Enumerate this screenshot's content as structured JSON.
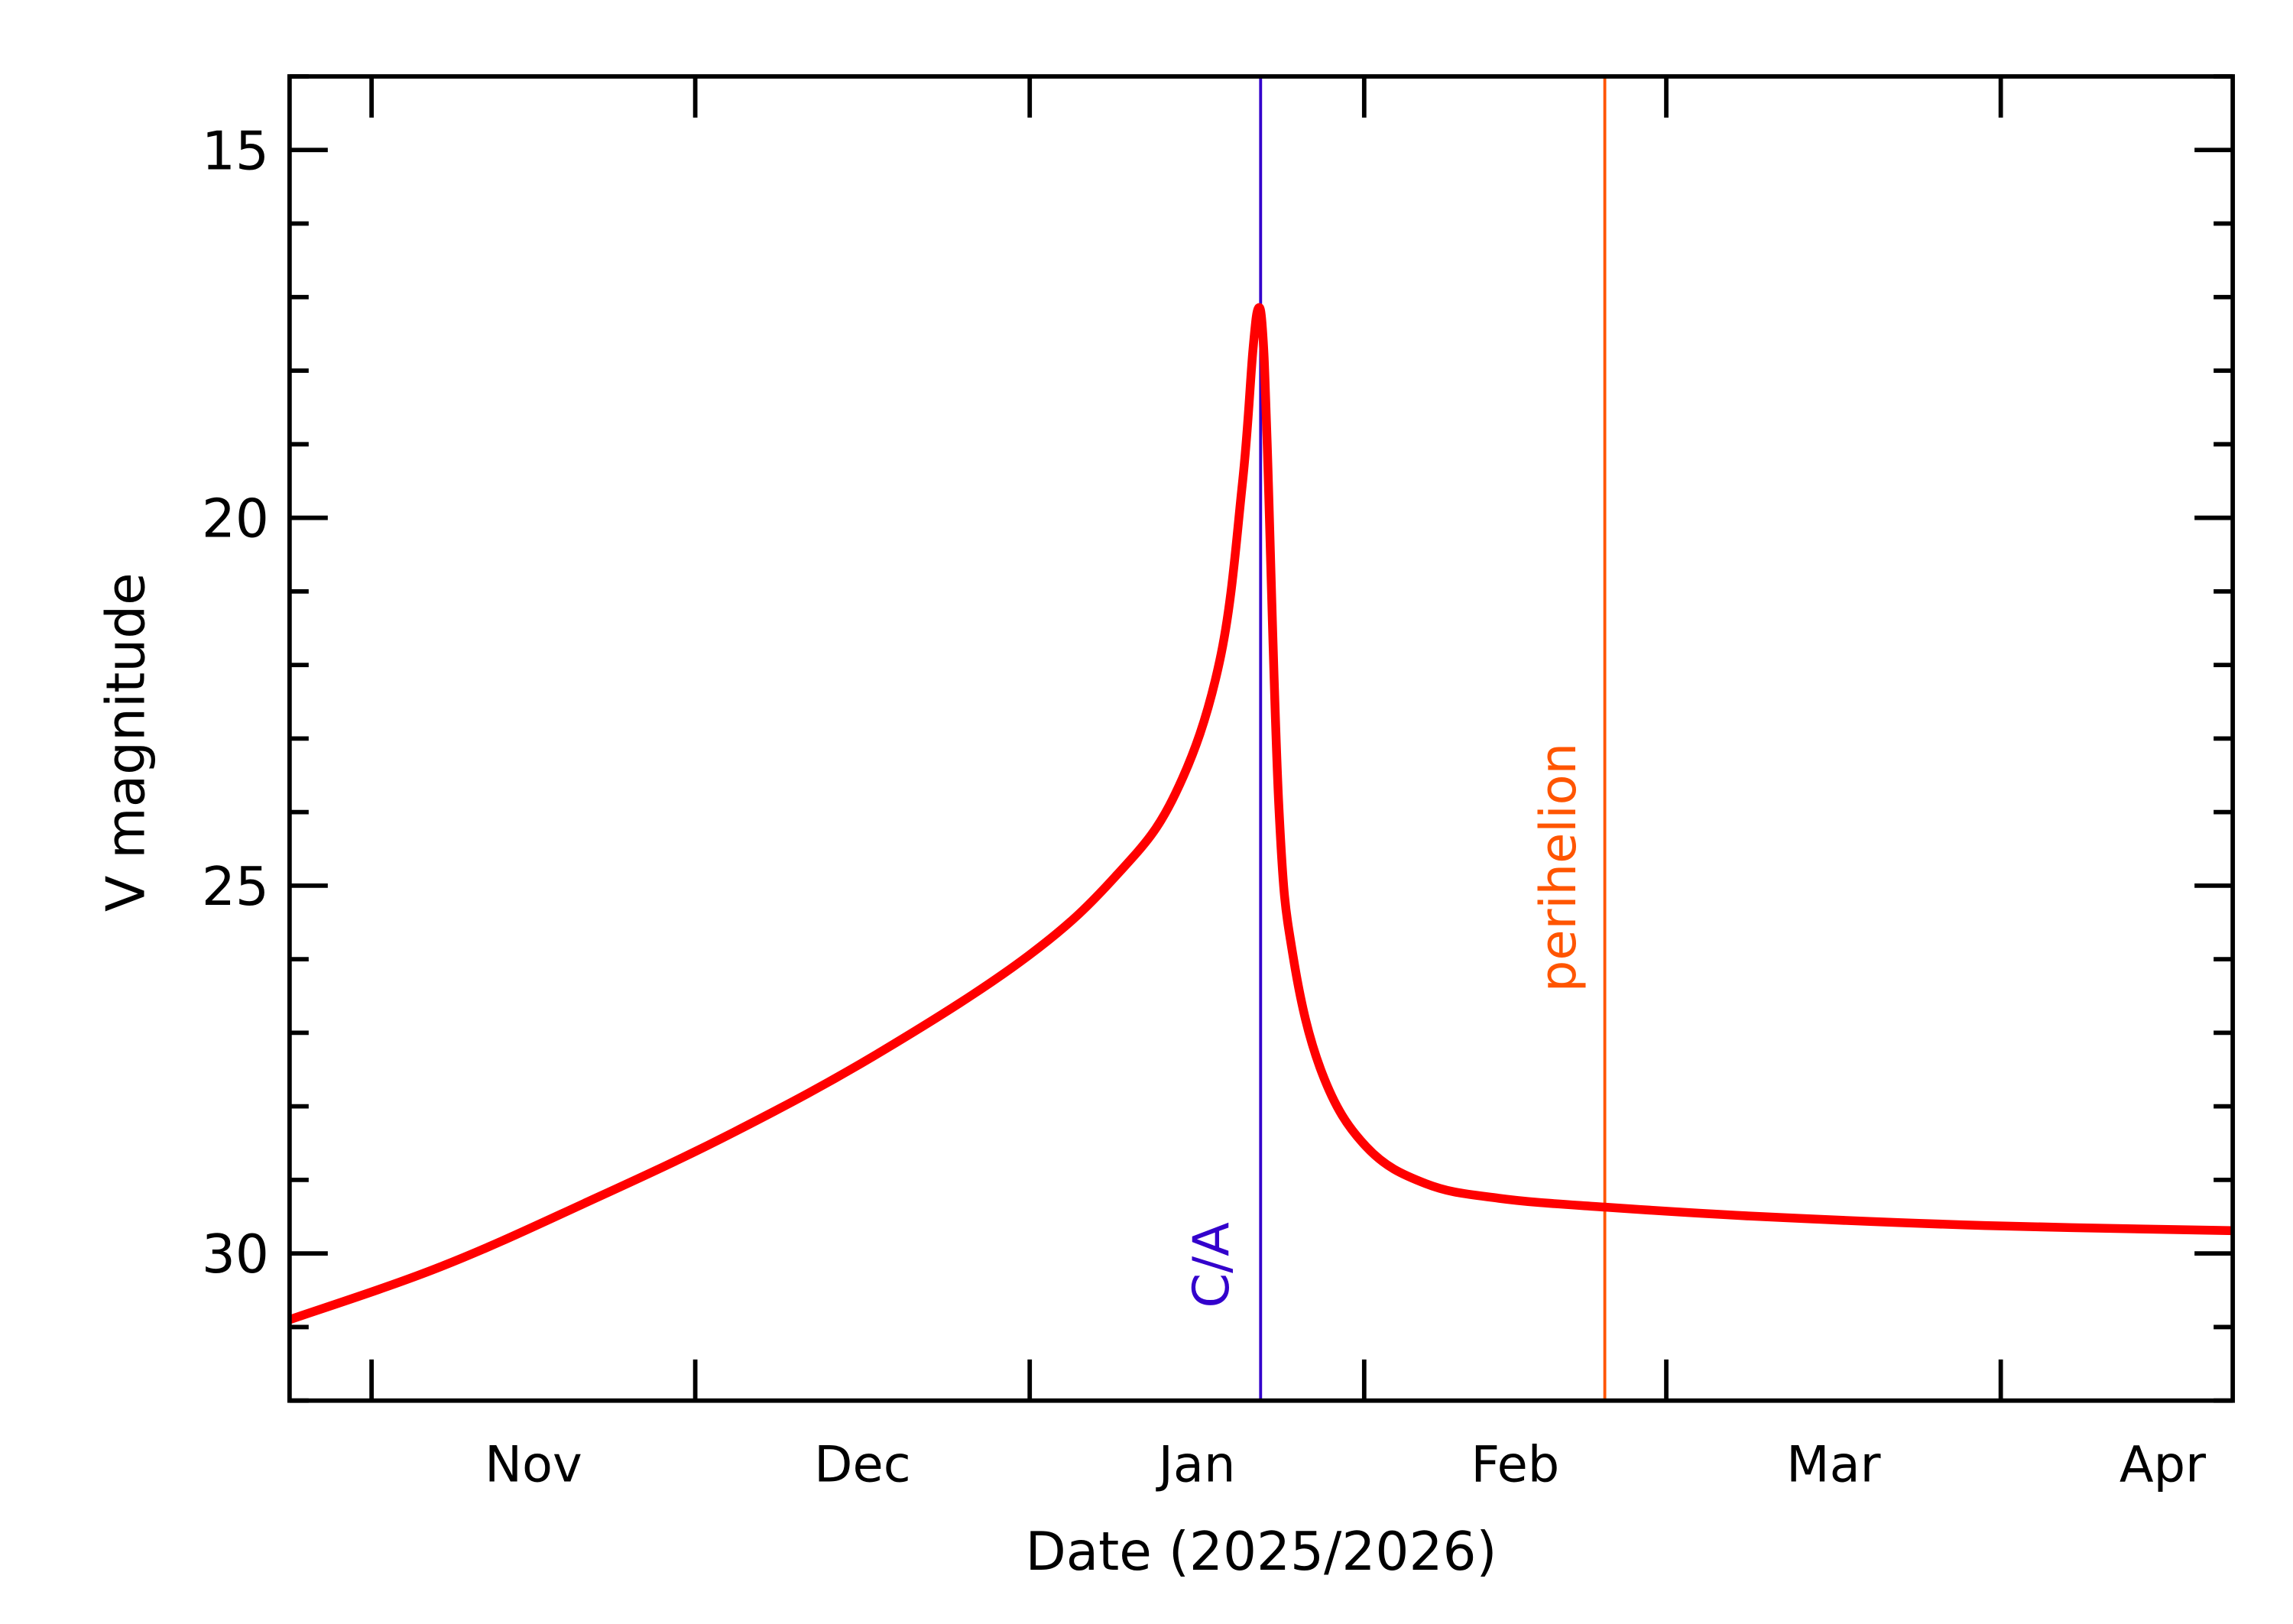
{
  "chart_data": {
    "type": "line",
    "xlabel": "Date (2025/2026)",
    "ylabel": "V magnitude",
    "x_units": "days since 2025-11-01",
    "xlim": [
      -7.6,
      172.5
    ],
    "ylim": [
      32,
      14
    ],
    "y_inverted": true,
    "yticks": [
      15,
      20,
      25,
      30
    ],
    "yticks_labels": [
      "15",
      "20",
      "25",
      "30"
    ],
    "y_minor_step": 1,
    "month_ticks": [
      0,
      30,
      61,
      92,
      120,
      151
    ],
    "month_labels": [
      {
        "label": "Nov",
        "x": 15
      },
      {
        "label": "Dec",
        "x": 45.5
      },
      {
        "label": "Jan",
        "x": 76.5
      },
      {
        "label": "Feb",
        "x": 106
      },
      {
        "label": "Mar",
        "x": 135.5
      },
      {
        "label": "Apr",
        "x": 166
      }
    ],
    "grid": false,
    "series": [
      {
        "name": "V magnitude",
        "color": "#ff0000",
        "x": [
          -7.6,
          6.4,
          20,
          33.6,
          47.3,
          60.9,
          69.1,
          74.5,
          78.6,
          80.7,
          81.7,
          82.2,
          82.6,
          83.0,
          84.1,
          85.4,
          88.1,
          92.2,
          97.7,
          104.5,
          114.3,
          129,
          149.5,
          172.5
        ],
        "y": [
          30.9,
          30.18,
          29.3,
          28.35,
          27.25,
          25.95,
          24.85,
          23.75,
          21.95,
          19.55,
          17.7,
          17.15,
          17.5,
          18.95,
          23.95,
          25.95,
          27.55,
          28.55,
          29.05,
          29.25,
          29.37,
          29.5,
          29.62,
          29.69
        ]
      }
    ],
    "markers": [
      {
        "label": "C/A",
        "x": 82.4,
        "color": "#3300cc"
      },
      {
        "label": "perihelion",
        "x": 114.3,
        "color": "#ff5500"
      }
    ]
  }
}
